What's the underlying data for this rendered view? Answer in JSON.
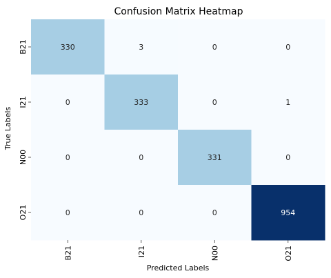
{
  "chart_data": {
    "type": "heatmap",
    "title": "Confusion Matrix Heatmap",
    "xlabel": "Predicted Labels",
    "ylabel": "True Labels",
    "x_categories": [
      "B21",
      "I21",
      "N00",
      "O21"
    ],
    "y_categories": [
      "B21",
      "I21",
      "N00",
      "O21"
    ],
    "values": [
      [
        330,
        3,
        0,
        0
      ],
      [
        0,
        333,
        0,
        1
      ],
      [
        0,
        0,
        331,
        0
      ],
      [
        0,
        0,
        0,
        954
      ]
    ],
    "value_range": [
      0,
      954
    ],
    "colormap": "Blues",
    "colorbar": false,
    "grid": false
  }
}
